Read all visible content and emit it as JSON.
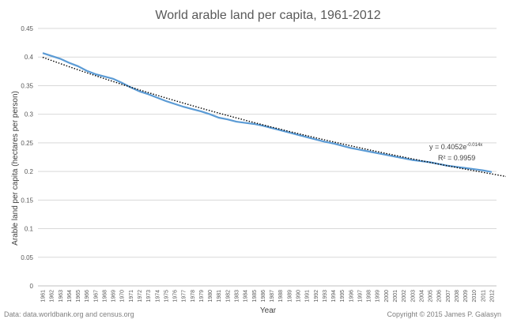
{
  "chart_data": {
    "type": "line",
    "title": "World arable land per capita, 1961-2012",
    "xlabel": "Year",
    "ylabel": "Arable land per capita (hectares per person)",
    "ylim": [
      0,
      0.45
    ],
    "yticks": [
      "0",
      "0.05",
      "0.1",
      "0.15",
      "0.2",
      "0.25",
      "0.3",
      "0.35",
      "0.4",
      "0.45"
    ],
    "ytick_values": [
      0,
      0.05,
      0.1,
      0.15,
      0.2,
      0.25,
      0.3,
      0.35,
      0.4,
      0.45
    ],
    "xlim": [
      1961,
      2012
    ],
    "x": [
      1961,
      1962,
      1963,
      1964,
      1965,
      1966,
      1967,
      1968,
      1969,
      1970,
      1971,
      1972,
      1973,
      1974,
      1975,
      1976,
      1977,
      1978,
      1979,
      1980,
      1981,
      1982,
      1983,
      1984,
      1985,
      1986,
      1987,
      1988,
      1989,
      1990,
      1991,
      1992,
      1993,
      1994,
      1995,
      1996,
      1997,
      1998,
      1999,
      2000,
      2001,
      2002,
      2003,
      2004,
      2005,
      2006,
      2007,
      2008,
      2009,
      2010,
      2011,
      2012
    ],
    "series": [
      {
        "name": "Arable land per capita",
        "color": "#5B9BD5",
        "values": [
          0.407,
          0.402,
          0.397,
          0.39,
          0.384,
          0.376,
          0.37,
          0.366,
          0.362,
          0.355,
          0.347,
          0.34,
          0.335,
          0.329,
          0.323,
          0.318,
          0.313,
          0.309,
          0.305,
          0.3,
          0.294,
          0.291,
          0.287,
          0.285,
          0.283,
          0.28,
          0.276,
          0.272,
          0.268,
          0.264,
          0.26,
          0.256,
          0.252,
          0.249,
          0.245,
          0.241,
          0.238,
          0.235,
          0.232,
          0.229,
          0.226,
          0.223,
          0.22,
          0.218,
          0.216,
          0.213,
          0.21,
          0.208,
          0.206,
          0.204,
          0.202,
          0.199
        ]
      }
    ],
    "trendline": {
      "name": "Exponential trend",
      "a": 0.4052,
      "b": -0.014,
      "color": "#000000",
      "equation_prefix": "y = 0.4052e",
      "equation_exponent": "-0.014x",
      "r_squared": "R² = 0.9959"
    },
    "grid": true,
    "legend": "none"
  },
  "footer": {
    "source": "Data: data.worldbank.org  and census.org",
    "copyright": "Copyright © 2015 James P. Galasyn"
  }
}
